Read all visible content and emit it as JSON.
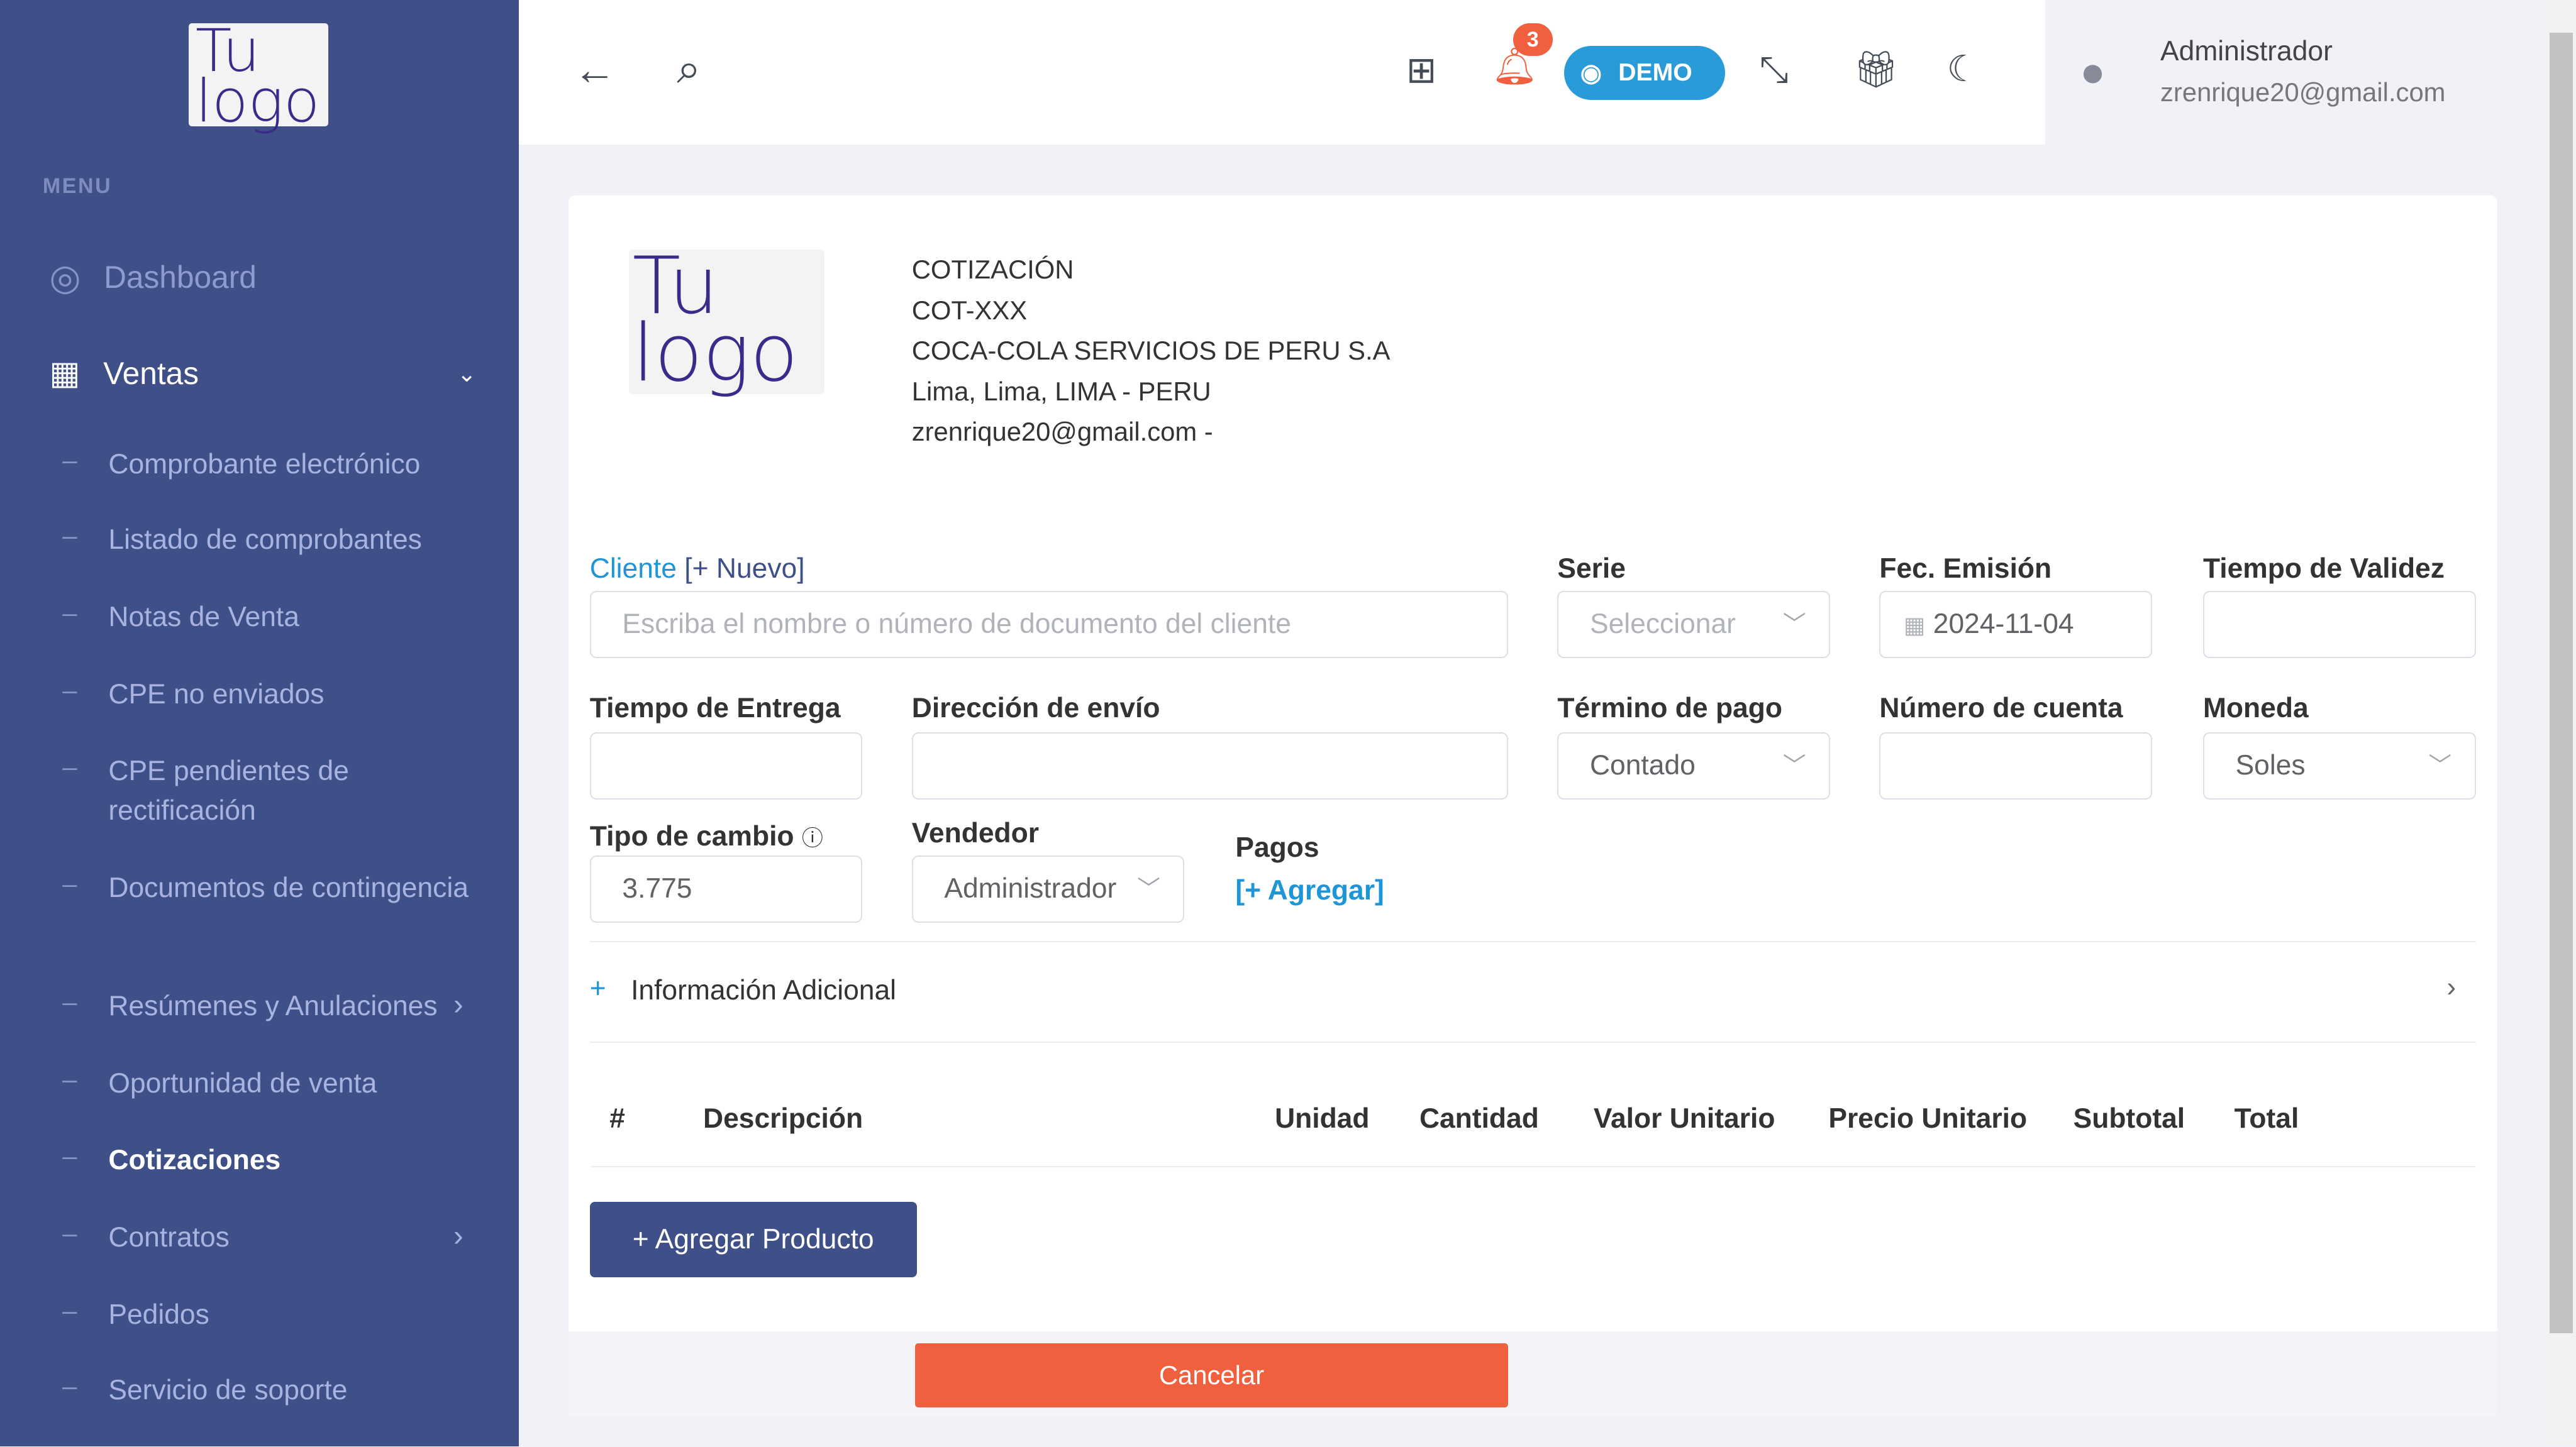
{
  "sidebar": {
    "logo_text": "Tu logo",
    "menu_label": "MENU",
    "dashboard": "Dashboard",
    "ventas": "Ventas",
    "items": [
      "Comprobante electrónico",
      "Listado de comprobantes",
      "Notas de Venta",
      "CPE no enviados",
      "CPE pendientes de rectificación",
      "Documentos de contingencia",
      "Resúmenes y Anulaciones",
      "Oportunidad de venta",
      "Cotizaciones",
      "Contratos",
      "Pedidos",
      "Servicio de soporte"
    ],
    "active": "Cotizaciones",
    "colors": {
      "background": "#3f5088"
    }
  },
  "header": {
    "notifications_count": "3",
    "demo_label": "DEMO",
    "user_name": "Administrador",
    "user_email": "zrenrique20@gmail.com"
  },
  "company": {
    "logo_text": "Tu logo",
    "doc_type": "COTIZACIÓN",
    "doc_number": "COT-XXX",
    "name": "COCA-COLA SERVICIOS DE PERU S.A",
    "address": "Lima, Lima, LIMA - PERU",
    "email": "zrenrique20@gmail.com -"
  },
  "form": {
    "cliente_label": "Cliente",
    "nuevo_link": "[+ Nuevo]",
    "cliente_placeholder": "Escriba el nombre o número de documento del cliente",
    "serie_label": "Serie",
    "serie_placeholder": "Seleccionar",
    "fecha_label": "Fec. Emisión",
    "fecha_value": "2024-11-04",
    "validez_label": "Tiempo de Validez",
    "validez_value": "",
    "entrega_label": "Tiempo de Entrega",
    "entrega_value": "",
    "direccion_label": "Dirección de envío",
    "direccion_value": "",
    "termino_label": "Término de pago",
    "termino_value": "Contado",
    "cuenta_label": "Número de cuenta",
    "cuenta_value": "",
    "moneda_label": "Moneda",
    "moneda_value": "Soles",
    "tipo_cambio_label": "Tipo de cambio",
    "tipo_cambio_value": "3.775",
    "vendedor_label": "Vendedor",
    "vendedor_value": "Administrador",
    "pagos_label": "Pagos",
    "pagos_link": "[+ Agregar]",
    "info_adicional": "Información Adicional"
  },
  "table": {
    "headers": [
      "#",
      "Descripción",
      "Unidad",
      "Cantidad",
      "Valor Unitario",
      "Precio Unitario",
      "Subtotal",
      "Total"
    ]
  },
  "actions": {
    "add_product": "+ Agregar Producto",
    "cancel": "Cancelar"
  },
  "colors": {
    "primary": "#3f5088",
    "accent": "#1e95d6",
    "danger": "#f0603f"
  }
}
